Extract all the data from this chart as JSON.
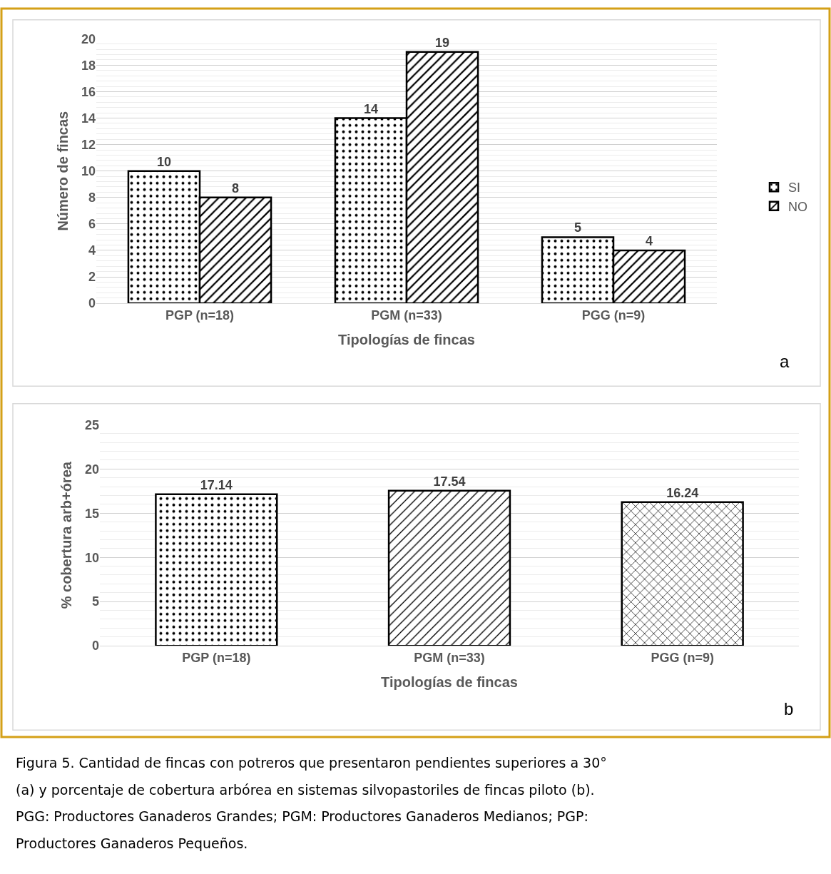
{
  "chart_data": [
    {
      "type": "bar",
      "xlabel": "Tipologías de fincas",
      "ylabel": "Número de fincas",
      "categories": [
        "PGP (n=18)",
        "PGM (n=33)",
        "PGG (n=9)"
      ],
      "series": [
        {
          "name": "SI",
          "color": "#000000",
          "values": [
            10,
            14,
            5
          ]
        },
        {
          "name": "NO",
          "color": "#000000",
          "values": [
            8,
            19,
            4
          ]
        }
      ],
      "ylim": [
        0,
        20
      ],
      "yticks": [
        0,
        2,
        4,
        6,
        8,
        10,
        12,
        14,
        16,
        18,
        20
      ],
      "grid": "y",
      "legend": "right",
      "data_labels": true,
      "annotations": [
        "a"
      ]
    },
    {
      "type": "bar",
      "xlabel": "Tipologías de fincas",
      "ylabel": "% cobertura arb+órea",
      "categories": [
        "PGP (n=18)",
        "PGM (n=33)",
        "PGG (n=9)"
      ],
      "series": [
        {
          "color": "#000000",
          "values": [
            17.14,
            17.54,
            16.24
          ]
        }
      ],
      "ylim": [
        0,
        25
      ],
      "yticks": [
        0,
        5,
        10,
        15,
        20,
        25
      ],
      "grid": "y",
      "data_labels": true,
      "annotations": [
        "b",
        "Figura 5. Cantidad de fincas con potreros que presentaron pendientes superiores a 30°",
        "(a) y porcentaje de cobertura arbórea en sistemas silvopastoriles de fincas piloto (b).",
        "PGG: Productores Ganaderos Grandes; PGM: Productores Ganaderos Medianos; PGP:",
        "Productores Ganaderos Pequeños."
      ]
    }
  ]
}
